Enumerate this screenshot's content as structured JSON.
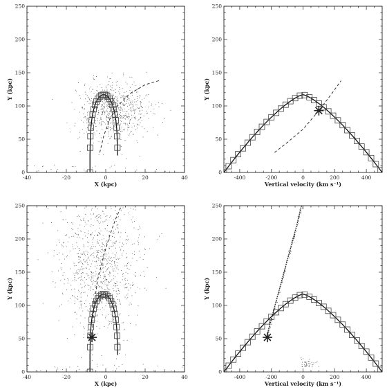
{
  "chart_data": [
    {
      "type": "scatter",
      "panel": "top-left",
      "xlabel": "X (kpc)",
      "ylabel": "Y (kpc)",
      "xlim": [
        -40,
        40
      ],
      "ylim": [
        0,
        250
      ],
      "xticks": [
        -40,
        -20,
        0,
        20,
        40
      ],
      "yticks": [
        0,
        50,
        100,
        150,
        200,
        250
      ],
      "orbit": {
        "x_center": -1,
        "x_half_width": 7,
        "y_peak": 117
      },
      "dashed_curve": {
        "x": [
          -3,
          -1,
          2,
          6,
          12,
          20,
          28
        ],
        "y": [
          30,
          55,
          80,
          100,
          118,
          132,
          139
        ]
      },
      "scatter_cloud": {
        "center": [
          4,
          95
        ],
        "spread": [
          9,
          22
        ],
        "count": 650
      }
    },
    {
      "type": "scatter",
      "panel": "top-right",
      "xlabel": "Vertical velocity (km s⁻¹)",
      "ylabel": "Y (kpc)",
      "xlim": [
        -500,
        500
      ],
      "ylim": [
        0,
        250
      ],
      "xticks": [
        -400,
        -200,
        0,
        200,
        400
      ],
      "yticks": [
        0,
        50,
        100,
        150,
        200,
        250
      ],
      "orbit": {
        "v_peak": 0,
        "y_peak": 117,
        "v_at_y0": 500
      },
      "dashed_curve": {
        "x": [
          -180,
          -100,
          0,
          100,
          180,
          240
        ],
        "y": [
          30,
          45,
          65,
          93,
          118,
          138
        ]
      },
      "star_marker": {
        "x": 100,
        "y": 93
      }
    },
    {
      "type": "scatter",
      "panel": "bottom-left",
      "xlabel": "X (kpc)",
      "ylabel": "Y (kpc)",
      "xlim": [
        -40,
        40
      ],
      "ylim": [
        0,
        250
      ],
      "xticks": [
        -40,
        -20,
        0,
        20,
        40
      ],
      "yticks": [
        0,
        50,
        100,
        150,
        200,
        250
      ],
      "orbit": {
        "x_center": -1,
        "x_half_width": 7,
        "y_peak": 117
      },
      "dashed_curve": {
        "x": [
          -7,
          -6,
          -4,
          -1,
          2,
          5,
          8
        ],
        "y": [
          52,
          100,
          140,
          175,
          205,
          230,
          250
        ]
      },
      "scatter_cloud": {
        "center": [
          -3,
          160
        ],
        "spread": [
          10,
          50
        ],
        "count": 900
      },
      "star_marker": {
        "x": -7,
        "y": 52
      }
    },
    {
      "type": "scatter",
      "panel": "bottom-right",
      "xlabel": "Vertical velocity (km s⁻¹)",
      "ylabel": "Y (kpc)",
      "xlim": [
        -500,
        500
      ],
      "ylim": [
        0,
        250
      ],
      "xticks": [
        -400,
        -200,
        0,
        200,
        400
      ],
      "yticks": [
        0,
        50,
        100,
        150,
        200,
        250
      ],
      "orbit": {
        "v_peak": 0,
        "y_peak": 117,
        "v_at_y0": 500
      },
      "stream_curve": {
        "x": [
          -230,
          -200,
          -160,
          -120,
          -80,
          -40,
          -10
        ],
        "y": [
          52,
          80,
          115,
          150,
          185,
          220,
          250
        ]
      },
      "star_marker": {
        "x": -225,
        "y": 52
      }
    }
  ]
}
